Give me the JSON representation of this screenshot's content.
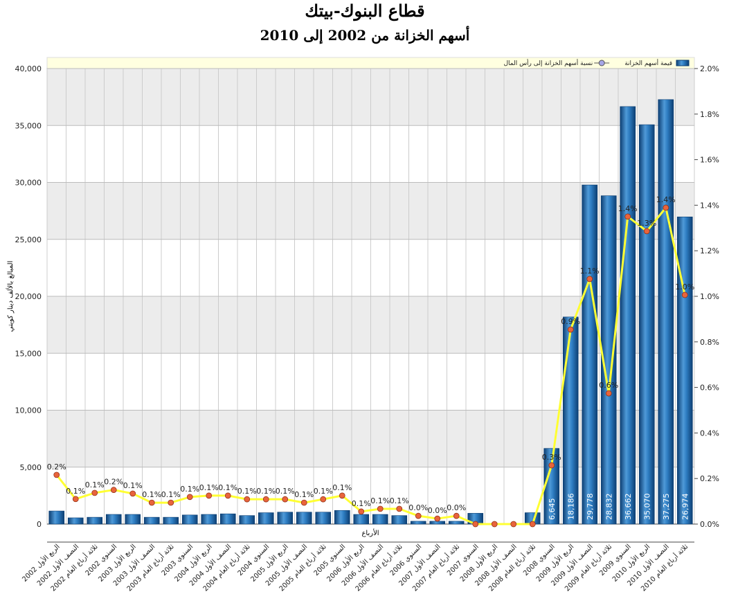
{
  "chart_data": {
    "type": "bar-line",
    "title": "قطاع البنوك-بيتك",
    "subtitle": "أسهم الخزانة من 2002 إلى 2010",
    "y_label": "المبالغ بالألف دينار كويتي",
    "x_label": "الأرباع",
    "categories": [
      "الربع الأول 2002",
      "النصف الأول 2002",
      "ثلاثة أرباع العام 2002",
      "السنوي 2002",
      "الربع الأول 2003",
      "النصف الأول 2003",
      "ثلاثة أرباع العام 2003",
      "السنوي 2003",
      "الربع الأول 2004",
      "النصف الأول 2004",
      "ثلاثة أرباع العام 2004",
      "السنوي 2004",
      "الربع الأول 2005",
      "النصف الأول 2005",
      "ثلاثة أرباع العام 2005",
      "السنوي 2005",
      "الربع الأول 2006",
      "النصف الأول 2006",
      "ثلاثة أرباع العام 2006",
      "السنوي 2006",
      "النصف الأول 2007",
      "ثلاثة أرباع العام 2007",
      "السنوي 2007",
      "الربع الأول 2008",
      "النصف الأول 2008",
      "ثلاثة أرباع العام 2008",
      "السنوي 2008",
      "الربع الأول 2009",
      "النصف الأول 2009",
      "ثلاثة أرباع العام 2009",
      "السنوي 2009",
      "الربع الأول 2010",
      "النصف الأول 2010",
      "ثلاثة أرباع العام 2010"
    ],
    "series": [
      {
        "name": "قيمة أسهم الخزانة",
        "color": "#1f6fb5",
        "type": "bar",
        "values": [
          1150,
          550,
          600,
          850,
          850,
          600,
          600,
          800,
          850,
          900,
          750,
          1000,
          1050,
          1050,
          1050,
          1200,
          850,
          850,
          750,
          250,
          250,
          250,
          950,
          0,
          0,
          1000,
          6645,
          18186,
          29778,
          28832,
          36662,
          35070,
          37275,
          26974
        ],
        "value_labels": [
          null,
          null,
          null,
          null,
          null,
          null,
          null,
          null,
          null,
          null,
          null,
          null,
          null,
          null,
          null,
          null,
          null,
          null,
          null,
          null,
          null,
          null,
          null,
          null,
          null,
          null,
          "6,645",
          "18,186",
          "29,778",
          "28,832",
          "36,662",
          "35,070",
          "37,275",
          "26,974"
        ]
      },
      {
        "name": "نسبة أسهم الخزانة إلى رأس المال",
        "color": "#ffff33",
        "marker_color": "#e8643c",
        "type": "line",
        "axis": "y2",
        "values": [
          0.216,
          0.11,
          0.137,
          0.15,
          0.134,
          0.094,
          0.094,
          0.119,
          0.125,
          0.125,
          0.109,
          0.109,
          0.109,
          0.094,
          0.109,
          0.125,
          0.055,
          0.067,
          0.067,
          0.036,
          0.024,
          0.036,
          0,
          0,
          0,
          0,
          0.258,
          0.854,
          1.076,
          0.574,
          1.35,
          1.286,
          1.389,
          1.006
        ],
        "value_labels": [
          "0.2%",
          "0.1%",
          "0.1%",
          "0.2%",
          "0.1%",
          "0.1%",
          "0.1%",
          "0.1%",
          "0.1%",
          "0.1%",
          "0.1%",
          "0.1%",
          "0.1%",
          "0.1%",
          "0.1%",
          "0.1%",
          "0.1%",
          "0.1%",
          "0.1%",
          "0.0%",
          "0.0%",
          "0.0%",
          null,
          null,
          null,
          null,
          "0.3%",
          "0.9%",
          "1.1%",
          "0.6%",
          "1.4%",
          "1.3%",
          "1.4%",
          "1.0%"
        ]
      }
    ],
    "ylim": [
      0,
      40000
    ],
    "yticks": [
      0,
      {
        "value": 5000,
        "label": "5,000"
      },
      {
        "value": 10000,
        "label": "10,000"
      },
      {
        "value": 15000,
        "label": "15,000"
      },
      {
        "value": 20000,
        "label": "20,000"
      },
      {
        "value": 25000,
        "label": "25,000"
      },
      {
        "value": 30000,
        "label": "30,000"
      },
      {
        "value": 35000,
        "label": "35,000"
      },
      {
        "value": 40000,
        "label": "40,000"
      }
    ],
    "y2lim": [
      0,
      2.0
    ],
    "y2ticks": [
      {
        "value": 0,
        "label": "0.0%"
      },
      {
        "value": 0.2,
        "label": "0.2%"
      },
      {
        "value": 0.4,
        "label": "0.4%"
      },
      {
        "value": 0.6,
        "label": "0.6%"
      },
      {
        "value": 0.8,
        "label": "0.8%"
      },
      {
        "value": 1.0,
        "label": "1.0%"
      },
      {
        "value": 1.2,
        "label": "1.2%"
      },
      {
        "value": 1.4,
        "label": "1.4%"
      },
      {
        "value": 1.6,
        "label": "1.6%"
      },
      {
        "value": 1.8,
        "label": "1.8%"
      },
      {
        "value": 2.0,
        "label": "2.0%"
      }
    ],
    "grid": true,
    "legend": "top"
  }
}
